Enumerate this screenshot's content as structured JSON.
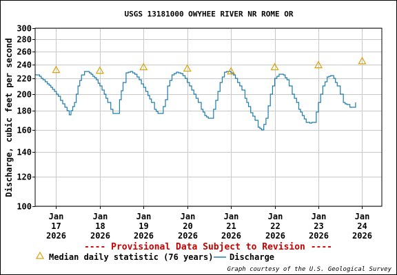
{
  "chart_data": {
    "type": "line",
    "title": "USGS 13181000 OWYHEE RIVER NR ROME OR",
    "ylabel": "Discharge, cubic feet per second",
    "xlabel": "",
    "y_scale": "log",
    "ylim": [
      100,
      300
    ],
    "y_ticks": [
      100,
      120,
      140,
      160,
      180,
      200,
      220,
      240,
      260,
      280,
      300
    ],
    "x_ticks": [
      {
        "month": "Jan",
        "day": "17",
        "year": "2026",
        "x": 17
      },
      {
        "month": "Jan",
        "day": "18",
        "year": "2026",
        "x": 18
      },
      {
        "month": "Jan",
        "day": "19",
        "year": "2026",
        "x": 19
      },
      {
        "month": "Jan",
        "day": "20",
        "year": "2026",
        "x": 20
      },
      {
        "month": "Jan",
        "day": "21",
        "year": "2026",
        "x": 21
      },
      {
        "month": "Jan",
        "day": "22",
        "year": "2026",
        "x": 22
      },
      {
        "month": "Jan",
        "day": "23",
        "year": "2026",
        "x": 23
      },
      {
        "month": "Jan",
        "day": "24",
        "year": "2026",
        "x": 24
      }
    ],
    "xlim": [
      16.52,
      24.45
    ],
    "grid": true,
    "series": [
      {
        "name": "Discharge",
        "color": "#1a7bb0",
        "x": [
          16.52,
          16.58,
          16.7,
          16.8,
          16.92,
          17.05,
          17.15,
          17.25,
          17.3,
          17.42,
          17.5,
          17.58,
          17.65,
          17.72,
          17.8,
          17.92,
          18.0,
          18.1,
          18.18,
          18.25,
          18.3,
          18.38,
          18.45,
          18.53,
          18.6,
          18.7,
          18.8,
          18.9,
          19.0,
          19.1,
          19.18,
          19.25,
          19.33,
          19.4,
          19.5,
          19.55,
          19.65,
          19.75,
          19.85,
          19.95,
          20.05,
          20.15,
          20.25,
          20.32,
          20.4,
          20.48,
          20.55,
          20.65,
          20.75,
          20.85,
          20.95,
          21.05,
          21.15,
          21.25,
          21.32,
          21.4,
          21.45,
          21.55,
          21.62,
          21.7,
          21.8,
          21.9,
          22.0,
          22.1,
          22.2,
          22.28,
          22.33,
          22.4,
          22.5,
          22.55,
          22.63,
          22.72,
          22.8,
          22.9,
          23.0,
          23.1,
          23.2,
          23.28,
          23.35,
          23.43,
          23.5,
          23.57,
          23.65,
          23.72,
          23.8,
          23.85
        ],
        "values": [
          225,
          225,
          218,
          213,
          206,
          197,
          188,
          180,
          176,
          190,
          210,
          225,
          230,
          230,
          226,
          218,
          210,
          200,
          190,
          182,
          177,
          177,
          193,
          215,
          228,
          230,
          226,
          218,
          208,
          198,
          190,
          182,
          177,
          177,
          193,
          210,
          225,
          229,
          227,
          220,
          210,
          200,
          190,
          182,
          175,
          172,
          172,
          192,
          215,
          229,
          230,
          225,
          215,
          205,
          195,
          185,
          178,
          170,
          163,
          160,
          172,
          200,
          220,
          226,
          225,
          218,
          210,
          200,
          190,
          182,
          175,
          168,
          167,
          168,
          190,
          210,
          222,
          224,
          220,
          210,
          200,
          190,
          187,
          184,
          184,
          190
        ]
      },
      {
        "name": "Median daily statistic (76 years)",
        "color": "#e0a000",
        "marker": "triangle",
        "x": [
          17.0,
          18.0,
          19.0,
          20.0,
          21.0,
          22.0,
          23.0,
          24.0
        ],
        "values": [
          232,
          231,
          236,
          234,
          230,
          236,
          239,
          245
        ]
      }
    ],
    "legend": [
      {
        "label": "Median daily statistic (76 years)",
        "kind": "marker"
      },
      {
        "label": "Discharge",
        "kind": "line"
      }
    ],
    "legend_position": "bottom",
    "annotation": "---- Provisional Data Subject to Revision ----",
    "credit": "Graph courtesy of the U.S. Geological Survey"
  }
}
